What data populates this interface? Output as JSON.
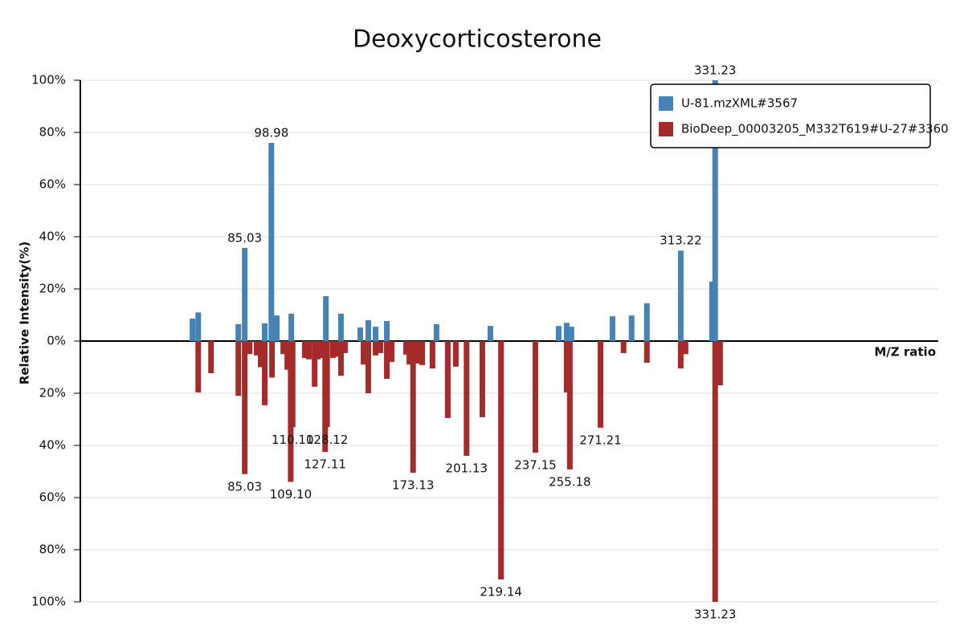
{
  "chart_data": {
    "type": "mirror-bar",
    "title": "Deoxycorticosterone",
    "ylabel": "Relative Intensity(%)",
    "xlabel": "M/Z ratio",
    "xlim": [
      -1,
      448
    ],
    "ylim": [
      -100,
      100
    ],
    "yticks": [
      {
        "value": 100,
        "label": "100%"
      },
      {
        "value": 80,
        "label": "80%"
      },
      {
        "value": 60,
        "label": "60%"
      },
      {
        "value": 40,
        "label": "40%"
      },
      {
        "value": 20,
        "label": "20%"
      },
      {
        "value": 0,
        "label": "0%"
      },
      {
        "value": -20,
        "label": "20%"
      },
      {
        "value": -40,
        "label": "40%"
      },
      {
        "value": -60,
        "label": "60%"
      },
      {
        "value": -80,
        "label": "80%"
      },
      {
        "value": -100,
        "label": "100%"
      }
    ],
    "grid": true,
    "legend": "top-right",
    "series": [
      {
        "name": "U-81.mzXML#3567",
        "color": "#4682b4",
        "x": [
          57.7,
          60.7,
          81.7,
          85.03,
          95.5,
          98.98,
          101.8,
          109.4,
          127.5,
          135.4,
          145.5,
          149.7,
          153.5,
          159.4,
          185.4,
          213.6,
          249.3,
          253.5,
          256.0,
          277.5,
          287.5,
          295.5,
          313.22,
          329.6,
          331.23
        ],
        "values": [
          8.6,
          11,
          6.5,
          35.7,
          6.8,
          76,
          9.8,
          10.5,
          17.2,
          10.5,
          5.2,
          8,
          5.5,
          7.7,
          6.5,
          5.8,
          5.8,
          7,
          5.5,
          9.5,
          9.8,
          14.5,
          34.7,
          22.8,
          100
        ],
        "labels": [
          null,
          null,
          null,
          "85.03",
          null,
          "98.98",
          null,
          null,
          null,
          null,
          null,
          null,
          null,
          null,
          null,
          null,
          null,
          null,
          null,
          null,
          null,
          null,
          "313.22",
          null,
          "331.23"
        ]
      },
      {
        "name": "BioDeep_00003205_M332T619#U-27#3360",
        "color": "#a52a2a",
        "x": [
          60.7,
          67.4,
          81.7,
          85.03,
          87.6,
          91.3,
          93.4,
          95.5,
          99.3,
          105.2,
          107.3,
          109.1,
          110.1,
          116.5,
          118.6,
          121.6,
          123.3,
          125.4,
          127.11,
          128.12,
          131.2,
          132.9,
          135.4,
          137.5,
          147.2,
          149.7,
          153.5,
          156.0,
          159.4,
          161.9,
          169.5,
          171.2,
          173.13,
          175.8,
          177.9,
          183.3,
          191.3,
          195.5,
          201.13,
          209.4,
          219.14,
          237.15,
          253.5,
          255.18,
          271.21,
          283.3,
          295.5,
          313.2,
          315.7,
          331.23,
          333.8
        ],
        "values": [
          -19.7,
          -12.3,
          -21,
          -51,
          -5,
          -5.5,
          -10,
          -24.6,
          -14,
          -5,
          -11,
          -54,
          -33,
          -6.5,
          -7,
          -17.5,
          -7,
          -6.5,
          -42.5,
          -33,
          -6.5,
          -6,
          -13.3,
          -4.6,
          -9,
          -20,
          -5.5,
          -4.6,
          -14.5,
          -8,
          -5.2,
          -9,
          -50.5,
          -8.6,
          -9.2,
          -10.5,
          -29.5,
          -9.8,
          -44,
          -29.2,
          -91.4,
          -42.8,
          -19.7,
          -49.2,
          -33.2,
          -4.6,
          -8.3,
          -10.5,
          -5,
          -100,
          -17
        ],
        "labels": [
          null,
          null,
          null,
          "85.03",
          null,
          null,
          null,
          null,
          null,
          null,
          null,
          "109.10",
          "110.10",
          null,
          null,
          null,
          null,
          null,
          "127.11",
          "128.12",
          null,
          null,
          null,
          null,
          null,
          null,
          null,
          null,
          null,
          null,
          null,
          null,
          "173.13",
          null,
          null,
          null,
          null,
          null,
          "201.13",
          null,
          "219.14",
          "237.15",
          null,
          "255.18",
          "271.21",
          null,
          null,
          null,
          null,
          "331.23",
          null
        ]
      }
    ]
  }
}
